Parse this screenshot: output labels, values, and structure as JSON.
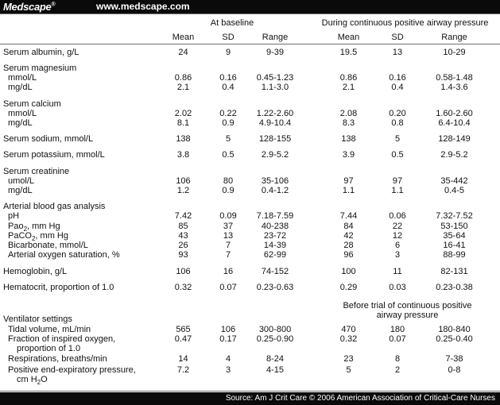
{
  "header": {
    "logo": "Medscape",
    "logo_mark": "®",
    "url": "www.medscape.com"
  },
  "group_headers": {
    "baseline": "At baseline",
    "cpap": "During continuous positive airway pressure",
    "before_trial": "Before trial of continuous positive airway pressure"
  },
  "columns": {
    "mean": "Mean",
    "sd": "SD",
    "range": "Range"
  },
  "rows": [
    {
      "label": "Serum albumin, g/L",
      "b": [
        "24",
        "9",
        "9-39"
      ],
      "c": [
        "19.5",
        "13",
        "10-29"
      ]
    },
    {
      "label": "Serum magnesium"
    },
    {
      "label": "mmol/L",
      "b": [
        "0.86",
        "0.16",
        "0.45-1.23"
      ],
      "c": [
        "0.86",
        "0.16",
        "0.58-1.48"
      ]
    },
    {
      "label": "mg/dL",
      "b": [
        "2.1",
        "0.4",
        "1.1-3.0"
      ],
      "c": [
        "2.1",
        "0.4",
        "1.4-3.6"
      ]
    },
    {
      "label": "Serum calcium"
    },
    {
      "label": "mmol/L",
      "b": [
        "2.02",
        "0.22",
        "1.22-2.60"
      ],
      "c": [
        "2.08",
        "0.20",
        "1.60-2.60"
      ]
    },
    {
      "label": "mg/dL",
      "b": [
        "8.1",
        "0.9",
        "4.9-10.4"
      ],
      "c": [
        "8.3",
        "0.8",
        "6.4-10.4"
      ]
    },
    {
      "label": "Serum sodium, mmol/L",
      "b": [
        "138",
        "5",
        "128-155"
      ],
      "c": [
        "138",
        "5",
        "128-149"
      ]
    },
    {
      "label": "Serum potassium, mmol/L",
      "b": [
        "3.8",
        "0.5",
        "2.9-5.2"
      ],
      "c": [
        "3.9",
        "0.5",
        "2.9-5.2"
      ]
    },
    {
      "label": "Serum creatinine"
    },
    {
      "label": "umol/L",
      "b": [
        "106",
        "80",
        "35-106"
      ],
      "c": [
        "97",
        "97",
        "35-442"
      ]
    },
    {
      "label": "mg/dL",
      "b": [
        "1.2",
        "0.9",
        "0.4-1.2"
      ],
      "c": [
        "1.1",
        "1.1",
        "0.4-5"
      ]
    },
    {
      "label": "Arterial blood gas analysis"
    },
    {
      "label": "pH",
      "b": [
        "7.42",
        "0.09",
        "7.18-7.59"
      ],
      "c": [
        "7.44",
        "0.06",
        "7.32-7.52"
      ]
    },
    {
      "label": "Pao",
      "sub": "2",
      "tail": ", mm Hg",
      "b": [
        "85",
        "37",
        "40-238"
      ],
      "c": [
        "84",
        "22",
        "53-150"
      ]
    },
    {
      "label": "PaCO",
      "sub": "2",
      "tail": ", mm Hg",
      "b": [
        "43",
        "13",
        "23-72"
      ],
      "c": [
        "42",
        "12",
        "35-64"
      ]
    },
    {
      "label": "Bicarbonate, mmol/L",
      "b": [
        "26",
        "7",
        "14-39"
      ],
      "c": [
        "28",
        "6",
        "16-41"
      ]
    },
    {
      "label": "Arterial oxygen saturation, %",
      "b": [
        "93",
        "7",
        "62-99"
      ],
      "c": [
        "96",
        "3",
        "88-99"
      ]
    },
    {
      "label": "Hemoglobin, g/L",
      "b": [
        "106",
        "16",
        "74-152"
      ],
      "c": [
        "100",
        "11",
        "82-131"
      ]
    },
    {
      "label": "Hematocrit, proportion of 1.0",
      "b": [
        "0.32",
        "0.07",
        "0.23-0.63"
      ],
      "c": [
        "0.29",
        "0.03",
        "0.23-0.38"
      ]
    },
    {
      "label": "Ventilator settings"
    },
    {
      "label": "Tidal volume, mL/min",
      "b": [
        "565",
        "106",
        "300-800"
      ],
      "c": [
        "470",
        "180",
        "180-840"
      ]
    },
    {
      "label": "Fraction of inspired oxygen,",
      "label2": "proportion of 1.0",
      "b": [
        "0.47",
        "0.17",
        "0.25-0.90"
      ],
      "c": [
        "0.32",
        "0.07",
        "0.25-0.40"
      ]
    },
    {
      "label": "Respirations, breaths/min",
      "b": [
        "14",
        "4",
        "8-24"
      ],
      "c": [
        "23",
        "8",
        "7-38"
      ]
    },
    {
      "label": "Positive end-expiratory pressure,",
      "label2": "cm H",
      "sub2": "2",
      "tail2": "O",
      "b": [
        "7.2",
        "3",
        "4-15"
      ],
      "c": [
        "5",
        "2",
        "0-8"
      ]
    }
  ],
  "footer": {
    "source": "Source: Am J Crit Care © 2006 American Association of Critical-Care Nurses"
  }
}
